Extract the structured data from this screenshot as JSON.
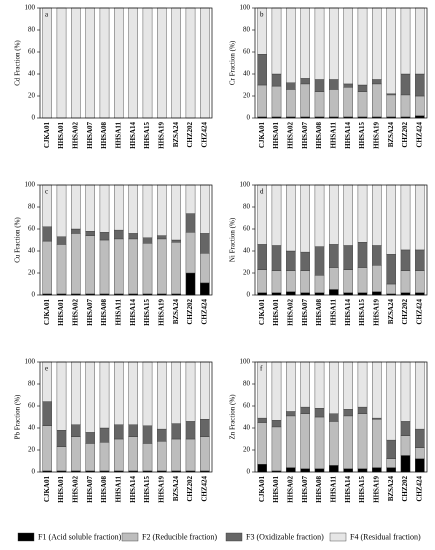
{
  "legend": [
    {
      "name": "F1 (Acid soluble fraction)",
      "color": "#000000"
    },
    {
      "name": "F2 (Reducible fraction)",
      "color": "#bdbdbd"
    },
    {
      "name": "F3 (Oxidizable fraction)",
      "color": "#666666"
    },
    {
      "name": "F4 (Residual fraction)",
      "color": "#e6e6e6"
    }
  ],
  "chart_data": [
    {
      "type": "bar",
      "stacked": true,
      "label": "a",
      "ylabel": "Cd Fraction (%)",
      "categories": [
        "CJKA01",
        "HHSA01",
        "HHSA02",
        "HHSA07",
        "HHSA08",
        "HHSA11",
        "HHSA14",
        "HHSA15",
        "HHSA19",
        "BZSA24",
        "CHZ202",
        "CHZ424"
      ],
      "ylim": [
        0,
        100
      ],
      "yticks": [
        0,
        20,
        40,
        60,
        80,
        100
      ],
      "series": [
        {
          "values": [
            0,
            0,
            0,
            0,
            0,
            0,
            0,
            0,
            0,
            0,
            0,
            0
          ]
        },
        {
          "values": [
            0,
            0,
            0,
            0,
            0,
            0,
            0,
            0,
            0,
            0,
            0,
            0
          ]
        },
        {
          "values": [
            0,
            0,
            0,
            0,
            0,
            0,
            0,
            0,
            0,
            0,
            0,
            0
          ]
        },
        {
          "values": [
            100,
            100,
            100,
            100,
            100,
            100,
            100,
            100,
            100,
            100,
            100,
            100
          ]
        }
      ]
    },
    {
      "type": "bar",
      "stacked": true,
      "label": "b",
      "ylabel": "Cr Fraction (%)",
      "categories": [
        "CJKA01",
        "HHSA01",
        "HHSA02",
        "HHSA07",
        "HHSA08",
        "HHSA11",
        "HHSA14",
        "HHSA15",
        "HHSA19",
        "BZSA24",
        "CHZ202",
        "CHZ424"
      ],
      "ylim": [
        0,
        100
      ],
      "yticks": [
        0,
        20,
        40,
        60,
        80,
        100
      ],
      "series": [
        {
          "values": [
            1,
            1,
            1,
            1,
            1,
            1,
            1,
            1,
            1,
            1,
            1,
            2
          ]
        },
        {
          "values": [
            29,
            28,
            25,
            30,
            23,
            25,
            27,
            23,
            30,
            20,
            20,
            18
          ]
        },
        {
          "values": [
            28,
            11,
            6,
            5,
            11,
            9,
            3,
            6,
            4,
            1,
            19,
            20
          ]
        },
        {
          "values": [
            42,
            60,
            68,
            64,
            65,
            65,
            69,
            70,
            65,
            78,
            60,
            60
          ]
        }
      ]
    },
    {
      "type": "bar",
      "stacked": true,
      "label": "c",
      "ylabel": "Cu Fraction (%)",
      "categories": [
        "CJKA01",
        "HHSA01",
        "HHSA02",
        "HHSA07",
        "HHSA08",
        "HHSA11",
        "HHSA14",
        "HHSA15",
        "HHSA19",
        "BZSA24",
        "CHZ202",
        "CHZ424"
      ],
      "ylim": [
        0,
        100
      ],
      "yticks": [
        0,
        20,
        40,
        60,
        80,
        100
      ],
      "series": [
        {
          "values": [
            1,
            1,
            1,
            1,
            1,
            1,
            1,
            1,
            1,
            1,
            20,
            11
          ]
        },
        {
          "values": [
            48,
            45,
            55,
            53,
            49,
            50,
            50,
            46,
            50,
            47,
            37,
            27
          ]
        },
        {
          "values": [
            13,
            7,
            4,
            4,
            7,
            8,
            5,
            5,
            3,
            2,
            17,
            18
          ]
        },
        {
          "values": [
            38,
            47,
            40,
            42,
            43,
            41,
            44,
            48,
            46,
            50,
            26,
            44
          ]
        }
      ]
    },
    {
      "type": "bar",
      "stacked": true,
      "label": "d",
      "ylabel": "Ni Fraction (%)",
      "categories": [
        "CJKA01",
        "HHSA01",
        "HHSA02",
        "HHSA07",
        "HHSA08",
        "HHSA11",
        "HHSA14",
        "HHSA15",
        "HHSA19",
        "BZSA24",
        "CHZ202",
        "CHZ424"
      ],
      "ylim": [
        0,
        100
      ],
      "yticks": [
        0,
        20,
        40,
        60,
        80,
        100
      ],
      "series": [
        {
          "values": [
            2,
            2,
            3,
            2,
            2,
            5,
            2,
            2,
            3,
            1,
            2,
            2
          ]
        },
        {
          "values": [
            21,
            20,
            19,
            20,
            16,
            20,
            21,
            23,
            24,
            9,
            20,
            20
          ]
        },
        {
          "values": [
            23,
            23,
            18,
            17,
            26,
            21,
            22,
            23,
            18,
            27,
            19,
            19
          ]
        },
        {
          "values": [
            54,
            55,
            60,
            61,
            56,
            54,
            55,
            52,
            55,
            63,
            59,
            59
          ]
        }
      ]
    },
    {
      "type": "bar",
      "stacked": true,
      "label": "e",
      "ylabel": "Pb Fraction (%)",
      "categories": [
        "CJKA01",
        "HHSA01",
        "HHSA02",
        "HHSA07",
        "HHSA08",
        "HHSA11",
        "HHSA14",
        "HHSA15",
        "HHSA19",
        "BZSA24",
        "CHZ202",
        "CHZ424"
      ],
      "ylim": [
        0,
        100
      ],
      "yticks": [
        0,
        20,
        40,
        60,
        80,
        100
      ],
      "series": [
        {
          "values": [
            1,
            1,
            1,
            1,
            1,
            1,
            1,
            1,
            1,
            1,
            1,
            1
          ]
        },
        {
          "values": [
            41,
            22,
            31,
            25,
            26,
            29,
            31,
            25,
            27,
            29,
            29,
            31
          ]
        },
        {
          "values": [
            22,
            15,
            11,
            10,
            13,
            13,
            11,
            16,
            11,
            14,
            16,
            16
          ]
        },
        {
          "values": [
            36,
            62,
            57,
            64,
            60,
            57,
            57,
            58,
            61,
            56,
            54,
            52
          ]
        }
      ]
    },
    {
      "type": "bar",
      "stacked": true,
      "label": "f",
      "ylabel": "Zn Fraction (%)",
      "categories": [
        "CJKA01",
        "HHSA01",
        "HHSA02",
        "HHSA07",
        "HHSA08",
        "HHSA11",
        "HHSA14",
        "HHSA15",
        "HHSA19",
        "BZSA24",
        "CHZ202",
        "CHZ424"
      ],
      "ylim": [
        0,
        100
      ],
      "yticks": [
        0,
        20,
        40,
        60,
        80,
        100
      ],
      "series": [
        {
          "values": [
            7,
            1,
            4,
            3,
            3,
            6,
            3,
            3,
            4,
            4,
            15,
            12
          ]
        },
        {
          "values": [
            38,
            40,
            47,
            50,
            47,
            40,
            48,
            50,
            44,
            8,
            18,
            10
          ]
        },
        {
          "values": [
            4,
            6,
            4,
            6,
            8,
            7,
            6,
            6,
            1,
            17,
            13,
            17
          ]
        },
        {
          "values": [
            51,
            53,
            45,
            41,
            42,
            47,
            43,
            41,
            51,
            71,
            54,
            61
          ]
        }
      ]
    }
  ]
}
